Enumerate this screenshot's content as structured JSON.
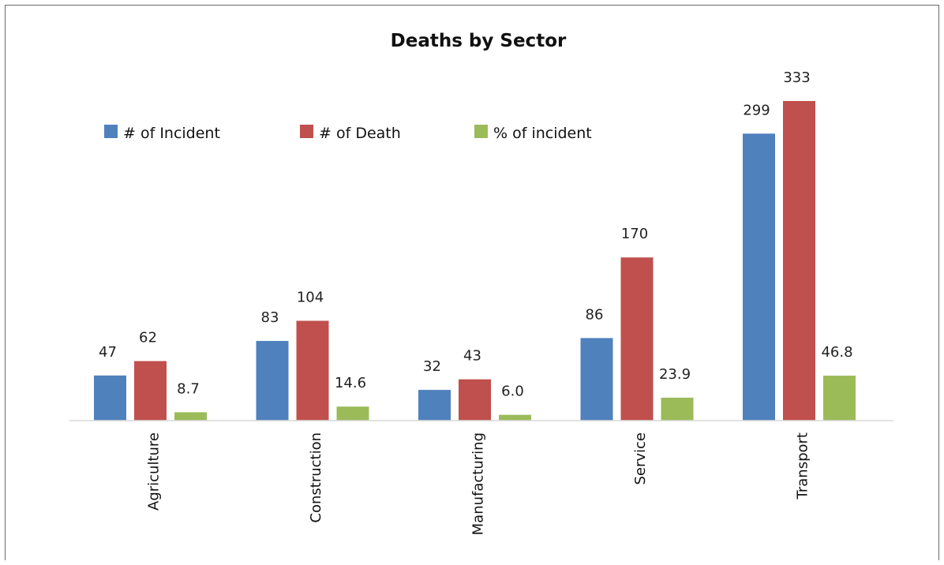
{
  "chart_data": {
    "type": "bar",
    "title": "Deaths by Sector",
    "categories": [
      "Agriculture",
      "Construction",
      "Manufacturing",
      "Service",
      "Transport"
    ],
    "series": [
      {
        "name": "# of Incident",
        "values": [
          47,
          83,
          32,
          86,
          299
        ],
        "labels": [
          "47",
          "83",
          "32",
          "86",
          "299"
        ],
        "color": "#4f81bd"
      },
      {
        "name": "# of Death",
        "values": [
          62,
          104,
          43,
          170,
          333
        ],
        "labels": [
          "62",
          "104",
          "43",
          "170",
          "333"
        ],
        "color": "#c0504d"
      },
      {
        "name": "% of incident",
        "values": [
          8.7,
          14.6,
          6.0,
          23.9,
          46.8
        ],
        "labels": [
          "8.7",
          "14.6",
          "6.0",
          "23.9",
          "46.8"
        ],
        "color": "#9bbb59"
      }
    ],
    "ylim": [
      0,
      333
    ],
    "grid": false,
    "legend_position": "top-left",
    "xlabel": "",
    "ylabel": ""
  }
}
